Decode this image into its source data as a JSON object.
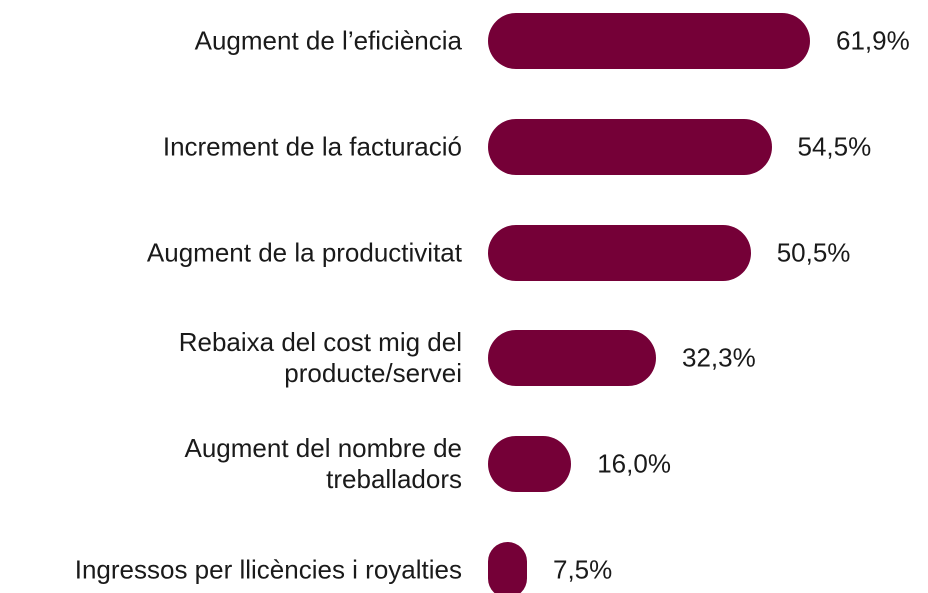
{
  "chart_data": {
    "type": "bar",
    "orientation": "horizontal",
    "color": "#750037",
    "categories": [
      "Augment de l’eficiència",
      "Increment de la facturació",
      "Augment de la productivitat",
      "Rebaixa del cost mig del\nproducte/servei",
      "Augment del nombre de\ntreballadors",
      "Ingressos per llicències i royalties"
    ],
    "values": [
      61.9,
      54.5,
      50.5,
      32.3,
      16.0,
      7.5
    ],
    "value_labels": [
      "61,9%",
      "54,5%",
      "50,5%",
      "32,3%",
      "16,0%",
      "7,5%"
    ]
  }
}
